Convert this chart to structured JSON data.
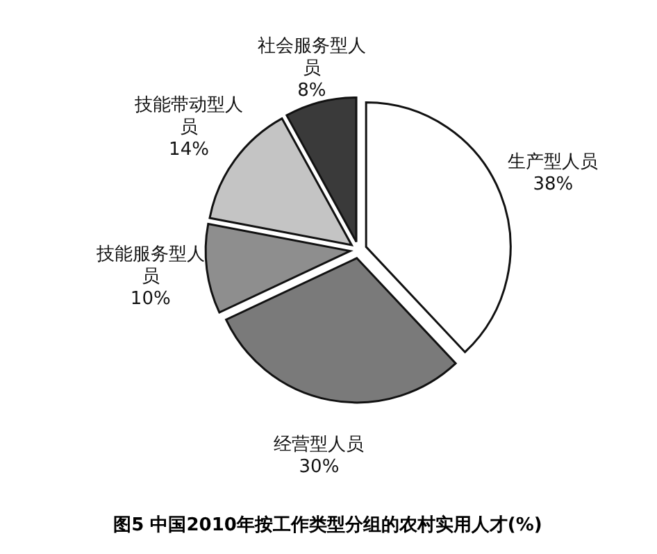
{
  "chart_data": {
    "type": "pie",
    "title": "图5 中国2010年按工作类型分组的农村实用人才(%)",
    "categories": [
      "生产型人员",
      "经营型人员",
      "技能服务型人员",
      "技能带动型人员",
      "社会服务型人员"
    ],
    "values": [
      38,
      30,
      10,
      14,
      8
    ],
    "value_labels": [
      "38%",
      "30%",
      "10%",
      "14%",
      "8%"
    ],
    "colors": [
      "#ffffff",
      "#7a7a7a",
      "#8e8e8e",
      "#c4c4c4",
      "#3a3a3a"
    ]
  }
}
